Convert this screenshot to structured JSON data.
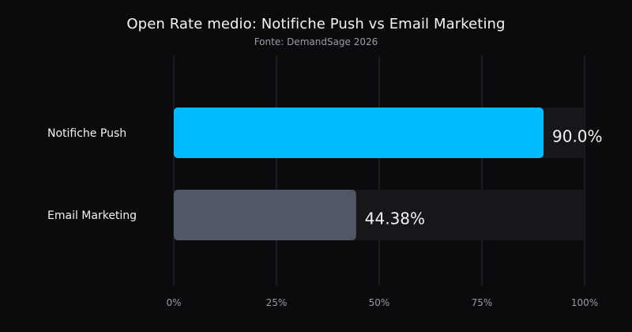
{
  "chart_data": {
    "type": "bar",
    "orientation": "horizontal",
    "title": "Open Rate medio: Notifiche Push vs Email Marketing",
    "subtitle": "Fonte: DemandSage 2026",
    "categories": [
      "Notifiche Push",
      "Email Marketing"
    ],
    "values": [
      90.0,
      44.38
    ],
    "value_labels": [
      "90.0%",
      "44.38%"
    ],
    "xlim": [
      0,
      100
    ],
    "x_ticks": [
      0,
      25,
      50,
      75,
      100
    ],
    "x_tick_labels": [
      "0%",
      "25%",
      "50%",
      "75%",
      "100%"
    ],
    "xlabel": "",
    "ylabel": "",
    "grid": true,
    "legend": "none",
    "colors": {
      "background": "#0b0b0d",
      "track": "#16161b",
      "grid": "#2a2a31",
      "bars": [
        "#00bbff",
        "#505866"
      ],
      "text": "#f2f2f2",
      "tick_text": "#9a9aa2"
    }
  }
}
